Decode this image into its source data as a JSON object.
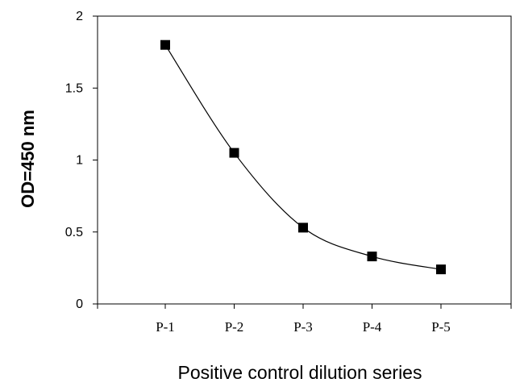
{
  "chart_data": {
    "type": "line",
    "title": "",
    "xlabel": "Positive control dilution series",
    "ylabel": "OD=450 nm",
    "categories": [
      "P-1",
      "P-2",
      "P-3",
      "P-4",
      "P-5"
    ],
    "series": [
      {
        "values": [
          1.8,
          1.05,
          0.53,
          0.33,
          0.24
        ]
      }
    ],
    "ylim": [
      0,
      2
    ],
    "yticks": [
      "0",
      "0.5",
      "1",
      "1.5",
      "2"
    ],
    "line_style": "smoothed",
    "marker": "square",
    "grid": false,
    "legend": "none",
    "colors": {
      "line": "#000000",
      "marker": "#000000",
      "axis": "#000000"
    }
  }
}
